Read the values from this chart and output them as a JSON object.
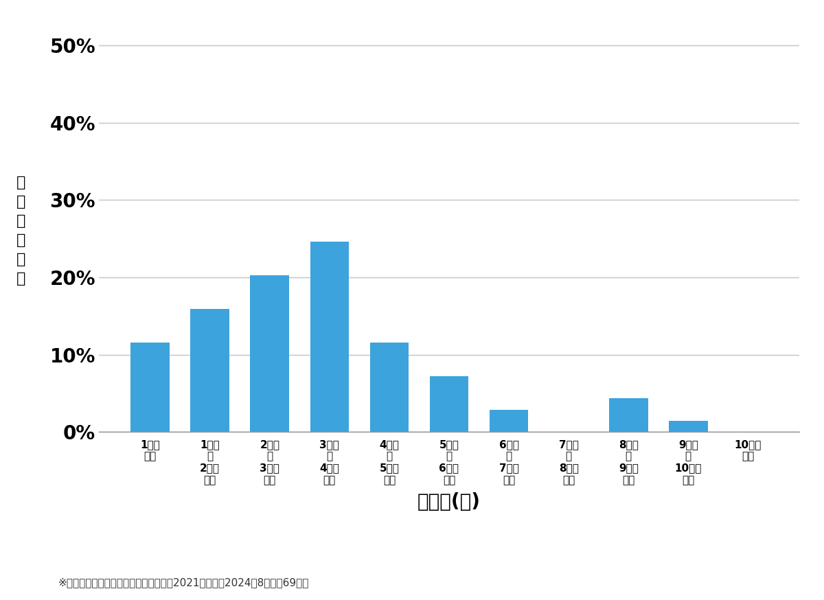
{
  "categories": [
    "1万円\n未満",
    "1万円\n〜\n2万円\n未満",
    "2万円\n〜\n3万円\n未満",
    "3万円\n〜\n4万円\n未満",
    "4万円\n〜\n5万円\n未満",
    "5万円\n〜\n6万円\n未満",
    "6万円\n〜\n7万円\n未満",
    "7万円\n〜\n8万円\n未満",
    "8万円\n〜\n9万円\n未満",
    "9万円\n〜\n10万円\n未満",
    "10万円\n以上"
  ],
  "values": [
    0.1159,
    0.1594,
    0.2029,
    0.2464,
    0.1159,
    0.0725,
    0.029,
    0.0,
    0.0435,
    0.0145,
    0.0
  ],
  "bar_color": "#3ca3dc",
  "ylabel": "価\n格\n帯\nの\n割\n合",
  "xlabel": "価格帯(円)",
  "yticks": [
    0.0,
    0.1,
    0.2,
    0.3,
    0.4,
    0.5
  ],
  "ytick_labels": [
    "0%",
    "10%",
    "20%",
    "30%",
    "40%",
    "50%"
  ],
  "ylim": [
    0,
    0.52
  ],
  "footnote": "※弊社受付の案件を対象に集計（期間：2021年１月〜2024年8月、計69件）",
  "background_color": "#ffffff",
  "grid_color": "#cccccc"
}
